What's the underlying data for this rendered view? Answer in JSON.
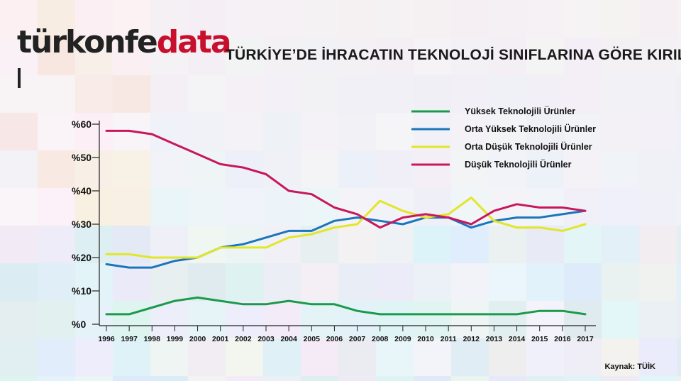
{
  "header": {
    "logo_part1": "türkonfe",
    "logo_part2": "data",
    "title": "TÜRKİYE’DE İHRACATIN TEKNOLOJİ SINIFLARINA GÖRE KIRILIMI"
  },
  "source": "Kaynak: TÜİK",
  "colors": {
    "high": "#1a9a4a",
    "mid_high": "#1a75bb",
    "mid_low": "#e2e629",
    "low": "#c8175d"
  },
  "chart_data": {
    "type": "line",
    "title": "TÜRKİYE’DE İHRACATIN TEKNOLOJİ SINIFLARINA GÖRE KIRILIMI",
    "x": [
      "1996",
      "1997",
      "1998",
      "1999",
      "2000",
      "2001",
      "2002",
      "2003",
      "2004",
      "2005",
      "2006",
      "2007",
      "2008",
      "2009",
      "2010",
      "2011",
      "2012",
      "2013",
      "2014",
      "2015",
      "2016",
      "2017"
    ],
    "ylim": [
      0,
      60
    ],
    "yticks": [
      0,
      10,
      20,
      30,
      40,
      50,
      60
    ],
    "ytick_labels": [
      "%0",
      "%10",
      "%20",
      "%30",
      "%40",
      "%50",
      "%60"
    ],
    "legend_position": "top-right",
    "series": [
      {
        "name": "Yüksek Teknolojili Ürünler",
        "color": "#1a9a4a",
        "values": [
          3,
          3,
          5,
          7,
          8,
          7,
          6,
          6,
          7,
          6,
          6,
          4,
          3,
          3,
          3,
          3,
          3,
          3,
          3,
          4,
          4,
          3
        ]
      },
      {
        "name": "Orta Yüksek Teknolojili Ürünler",
        "color": "#1a75bb",
        "values": [
          18,
          17,
          17,
          19,
          20,
          23,
          24,
          26,
          28,
          28,
          31,
          32,
          31,
          30,
          32,
          32,
          29,
          31,
          32,
          32,
          33,
          34
        ]
      },
      {
        "name": "Orta Düşük Teknolojili Ürünler",
        "color": "#e2e629",
        "values": [
          21,
          21,
          20,
          20,
          20,
          23,
          23,
          23,
          26,
          27,
          29,
          30,
          37,
          34,
          32,
          33,
          38,
          31,
          29,
          29,
          28,
          30
        ]
      },
      {
        "name": "Düşük Teknolojili Ürünler",
        "color": "#c8175d",
        "values": [
          58,
          58,
          57,
          54,
          51,
          48,
          47,
          45,
          40,
          39,
          35,
          33,
          29,
          32,
          33,
          32,
          30,
          34,
          36,
          35,
          35,
          34
        ]
      }
    ]
  }
}
